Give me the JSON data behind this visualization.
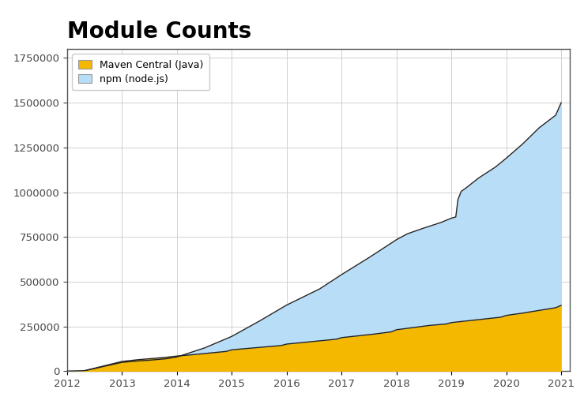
{
  "title": "Module Counts",
  "title_fontsize": 20,
  "title_fontweight": "bold",
  "background_color": "#ffffff",
  "plot_bg_color": "#ffffff",
  "grid_color": "#d0d0d0",
  "xlim": [
    2012.0,
    2021.15
  ],
  "ylim": [
    0,
    1800000
  ],
  "yticks": [
    0,
    250000,
    500000,
    750000,
    1000000,
    1250000,
    1500000,
    1750000
  ],
  "xticks": [
    2012,
    2013,
    2014,
    2015,
    2016,
    2017,
    2018,
    2019,
    2020,
    2021
  ],
  "maven_color": "#f5b800",
  "npm_fill_color": "#b8ddf7",
  "line_color": "#222222",
  "legend_maven_label": "Maven Central (Java)",
  "legend_npm_label": "npm (node.js)",
  "maven_x": [
    2012.0,
    2012.3,
    2013.0,
    2013.3,
    2013.5,
    2013.8,
    2014.0,
    2014.3,
    2014.6,
    2014.9,
    2015.0,
    2015.3,
    2015.6,
    2015.9,
    2016.0,
    2016.3,
    2016.6,
    2016.9,
    2017.0,
    2017.3,
    2017.6,
    2017.9,
    2018.0,
    2018.3,
    2018.6,
    2018.9,
    2019.0,
    2019.3,
    2019.6,
    2019.9,
    2020.0,
    2020.3,
    2020.6,
    2020.9,
    2021.0
  ],
  "maven_y": [
    0,
    2000,
    55000,
    65000,
    70000,
    78000,
    85000,
    93000,
    102000,
    111000,
    120000,
    128000,
    136000,
    144000,
    152000,
    161000,
    170000,
    179000,
    188000,
    198000,
    208000,
    220000,
    232000,
    244000,
    256000,
    264000,
    272000,
    282000,
    292000,
    302000,
    312000,
    325000,
    340000,
    355000,
    368000
  ],
  "npm_x": [
    2012.0,
    2012.3,
    2013.0,
    2013.3,
    2013.5,
    2013.8,
    2014.0,
    2014.5,
    2015.0,
    2015.5,
    2016.0,
    2016.3,
    2016.6,
    2017.0,
    2017.5,
    2018.0,
    2018.2,
    2018.5,
    2018.8,
    2019.0,
    2019.08,
    2019.12,
    2019.18,
    2019.25,
    2019.5,
    2019.8,
    2020.0,
    2020.3,
    2020.6,
    2020.9,
    2021.0
  ],
  "npm_y": [
    0,
    2000,
    50000,
    58000,
    62000,
    70000,
    80000,
    130000,
    195000,
    280000,
    370000,
    415000,
    460000,
    540000,
    635000,
    735000,
    768000,
    800000,
    830000,
    855000,
    862000,
    960000,
    1005000,
    1020000,
    1080000,
    1140000,
    1190000,
    1270000,
    1360000,
    1430000,
    1500000
  ]
}
